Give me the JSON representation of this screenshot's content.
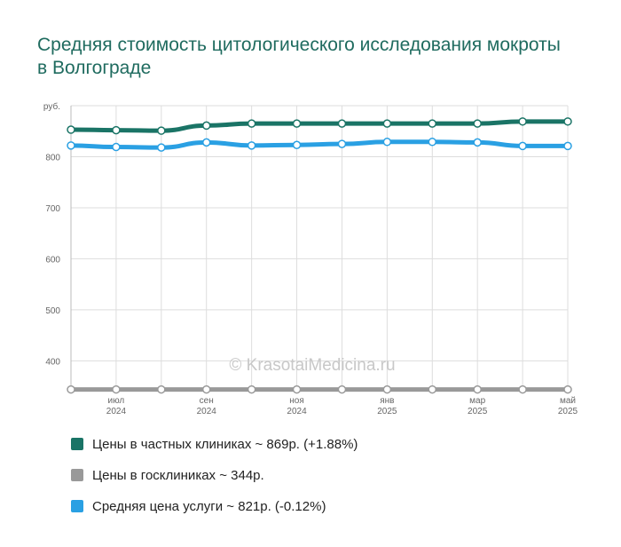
{
  "title": "Средняя стоимость цитологического исследования мокроты в Волгограде",
  "watermark": "© KrasotaiMedicina.ru",
  "chart_data": {
    "type": "line",
    "yunit": "руб.",
    "ylim": [
      345,
      900
    ],
    "yticks": [
      400,
      500,
      600,
      700,
      800
    ],
    "grid": true,
    "x_ticks": [
      {
        "idx": 1,
        "month": "июл",
        "year": "2024"
      },
      {
        "idx": 3,
        "month": "сен",
        "year": "2024"
      },
      {
        "idx": 5,
        "month": "ноя",
        "year": "2024"
      },
      {
        "idx": 7,
        "month": "янв",
        "year": "2025"
      },
      {
        "idx": 9,
        "month": "мар",
        "year": "2025"
      },
      {
        "idx": 11,
        "month": "май",
        "year": "2025"
      }
    ],
    "series": [
      {
        "name": "Цены в частных клиниках",
        "color": "#1a7466",
        "values": [
          853,
          852,
          851,
          861,
          865,
          865,
          865,
          865,
          865,
          865,
          869,
          869
        ]
      },
      {
        "name": "Цены в госклиниках",
        "color": "#999999",
        "values": [
          344,
          344,
          344,
          344,
          344,
          344,
          344,
          344,
          344,
          344,
          344,
          344
        ]
      },
      {
        "name": "Средняя цена услуги",
        "color": "#2aa0e3",
        "values": [
          822,
          819,
          818,
          828,
          822,
          823,
          825,
          829,
          829,
          828,
          821,
          821
        ]
      }
    ]
  },
  "legend": [
    {
      "label": "Цены в частных клиниках ~ 869р. (+1.88%)",
      "color": "#1a7466"
    },
    {
      "label": "Цены в госклиниках ~ 344р.",
      "color": "#999999"
    },
    {
      "label": "Средняя цена услуги ~ 821р. (-0.12%)",
      "color": "#2aa0e3"
    }
  ]
}
